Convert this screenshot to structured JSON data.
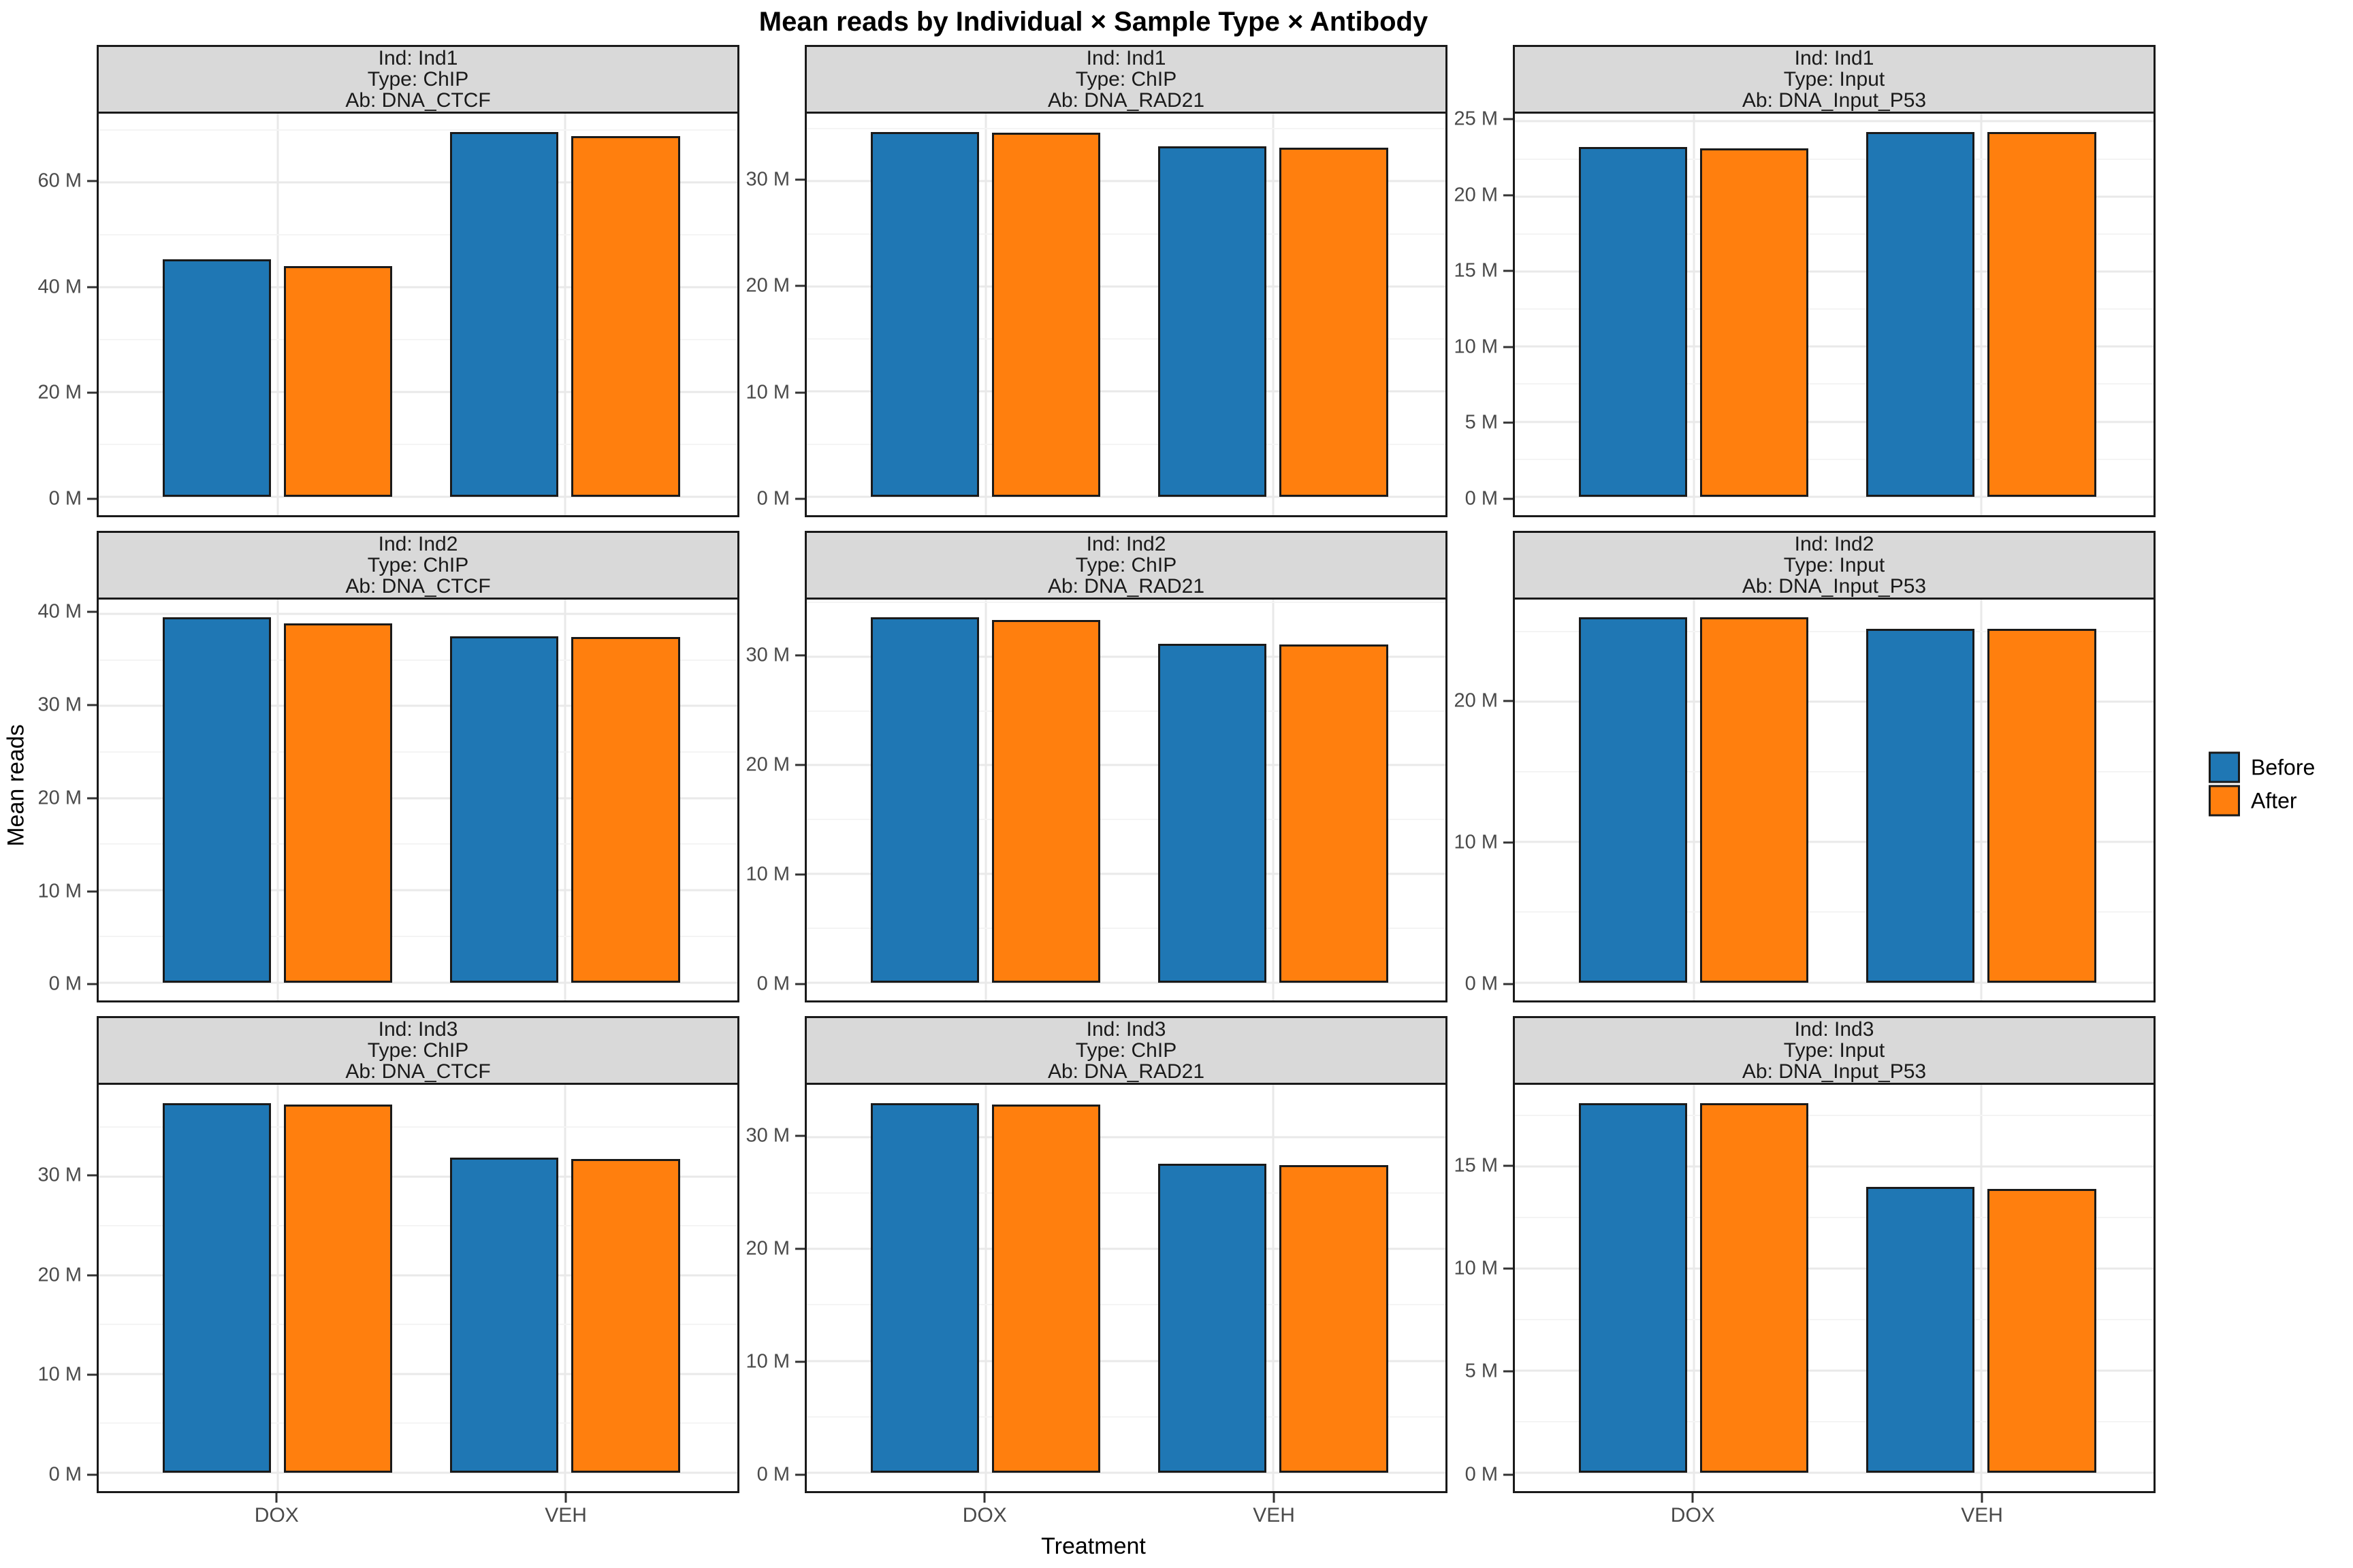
{
  "title": "Mean reads by Individual × Sample Type × Antibody",
  "axes": {
    "x_label": "Treatment",
    "y_label": "Mean reads",
    "categories": [
      "DOX",
      "VEH"
    ],
    "tick_unit": "M"
  },
  "legend": {
    "items": [
      {
        "label": "Before",
        "color": "#1f77b4"
      },
      {
        "label": "After",
        "color": "#ff7f0e"
      }
    ]
  },
  "colors": {
    "before": "#1f77b4",
    "after": "#ff7f0e",
    "panel_border": "#1a1a1a",
    "strip_bg": "#d9d9d9",
    "grid_major": "#e9e9e9",
    "grid_minor": "#f4f4f4",
    "axis_text": "#4a4a4a"
  },
  "chart_data": {
    "type": "bar",
    "layout": "facet_grid_3x3",
    "categories": [
      "DOX",
      "VEH"
    ],
    "series_names": [
      "Before",
      "After"
    ],
    "value_unit": "millions_of_reads",
    "y_expansion": 0.05,
    "facets": [
      {
        "strip": [
          "Ind: Ind1",
          "Type: ChIP",
          "Ab: DNA_CTCF"
        ],
        "y_ticks": [
          0,
          20,
          40,
          60
        ],
        "series": [
          {
            "name": "Before",
            "values": [
              45.4,
              69.7
            ]
          },
          {
            "name": "After",
            "values": [
              44.0,
              68.9
            ]
          }
        ]
      },
      {
        "strip": [
          "Ind: Ind1",
          "Type: ChIP",
          "Ab: DNA_RAD21"
        ],
        "y_ticks": [
          0,
          10,
          20,
          30
        ],
        "series": [
          {
            "name": "Before",
            "values": [
              34.7,
              33.3
            ]
          },
          {
            "name": "After",
            "values": [
              34.6,
              33.2
            ]
          }
        ]
      },
      {
        "strip": [
          "Ind: Ind1",
          "Type: Input",
          "Ab: DNA_Input_P53"
        ],
        "y_ticks": [
          0,
          5,
          10,
          15,
          20,
          25
        ],
        "series": [
          {
            "name": "Before",
            "values": [
              23.3,
              24.3
            ]
          },
          {
            "name": "After",
            "values": [
              23.2,
              24.3
            ]
          }
        ]
      },
      {
        "strip": [
          "Ind: Ind2",
          "Type: ChIP",
          "Ab: DNA_CTCF"
        ],
        "y_ticks": [
          0,
          10,
          20,
          30,
          40
        ],
        "series": [
          {
            "name": "Before",
            "values": [
              39.6,
              37.6
            ]
          },
          {
            "name": "After",
            "values": [
              39.0,
              37.5
            ]
          }
        ]
      },
      {
        "strip": [
          "Ind: Ind2",
          "Type: ChIP",
          "Ab: DNA_RAD21"
        ],
        "y_ticks": [
          0,
          10,
          20,
          30
        ],
        "series": [
          {
            "name": "Before",
            "values": [
              33.6,
              31.2
            ]
          },
          {
            "name": "After",
            "values": [
              33.4,
              31.1
            ]
          }
        ]
      },
      {
        "strip": [
          "Ind: Ind2",
          "Type: Input",
          "Ab: DNA_Input_P53"
        ],
        "y_ticks": [
          0,
          10,
          20
        ],
        "series": [
          {
            "name": "Before",
            "values": [
              26.0,
              25.2
            ]
          },
          {
            "name": "After",
            "values": [
              26.0,
              25.2
            ]
          }
        ]
      },
      {
        "strip": [
          "Ind: Ind3",
          "Type: ChIP",
          "Ab: DNA_CTCF"
        ],
        "y_ticks": [
          0,
          10,
          20,
          30
        ],
        "series": [
          {
            "name": "Before",
            "values": [
              37.4,
              31.9
            ]
          },
          {
            "name": "After",
            "values": [
              37.3,
              31.8
            ]
          }
        ]
      },
      {
        "strip": [
          "Ind: Ind3",
          "Type: ChIP",
          "Ab: DNA_RAD21"
        ],
        "y_ticks": [
          0,
          10,
          20,
          30
        ],
        "series": [
          {
            "name": "Before",
            "values": [
              33.0,
              27.6
            ]
          },
          {
            "name": "After",
            "values": [
              32.9,
              27.5
            ]
          }
        ]
      },
      {
        "strip": [
          "Ind: Ind3",
          "Type: Input",
          "Ab: DNA_Input_P53"
        ],
        "y_ticks": [
          0,
          5,
          10,
          15
        ],
        "series": [
          {
            "name": "Before",
            "values": [
              18.1,
              14.0
            ]
          },
          {
            "name": "After",
            "values": [
              18.1,
              13.9
            ]
          }
        ]
      }
    ]
  }
}
